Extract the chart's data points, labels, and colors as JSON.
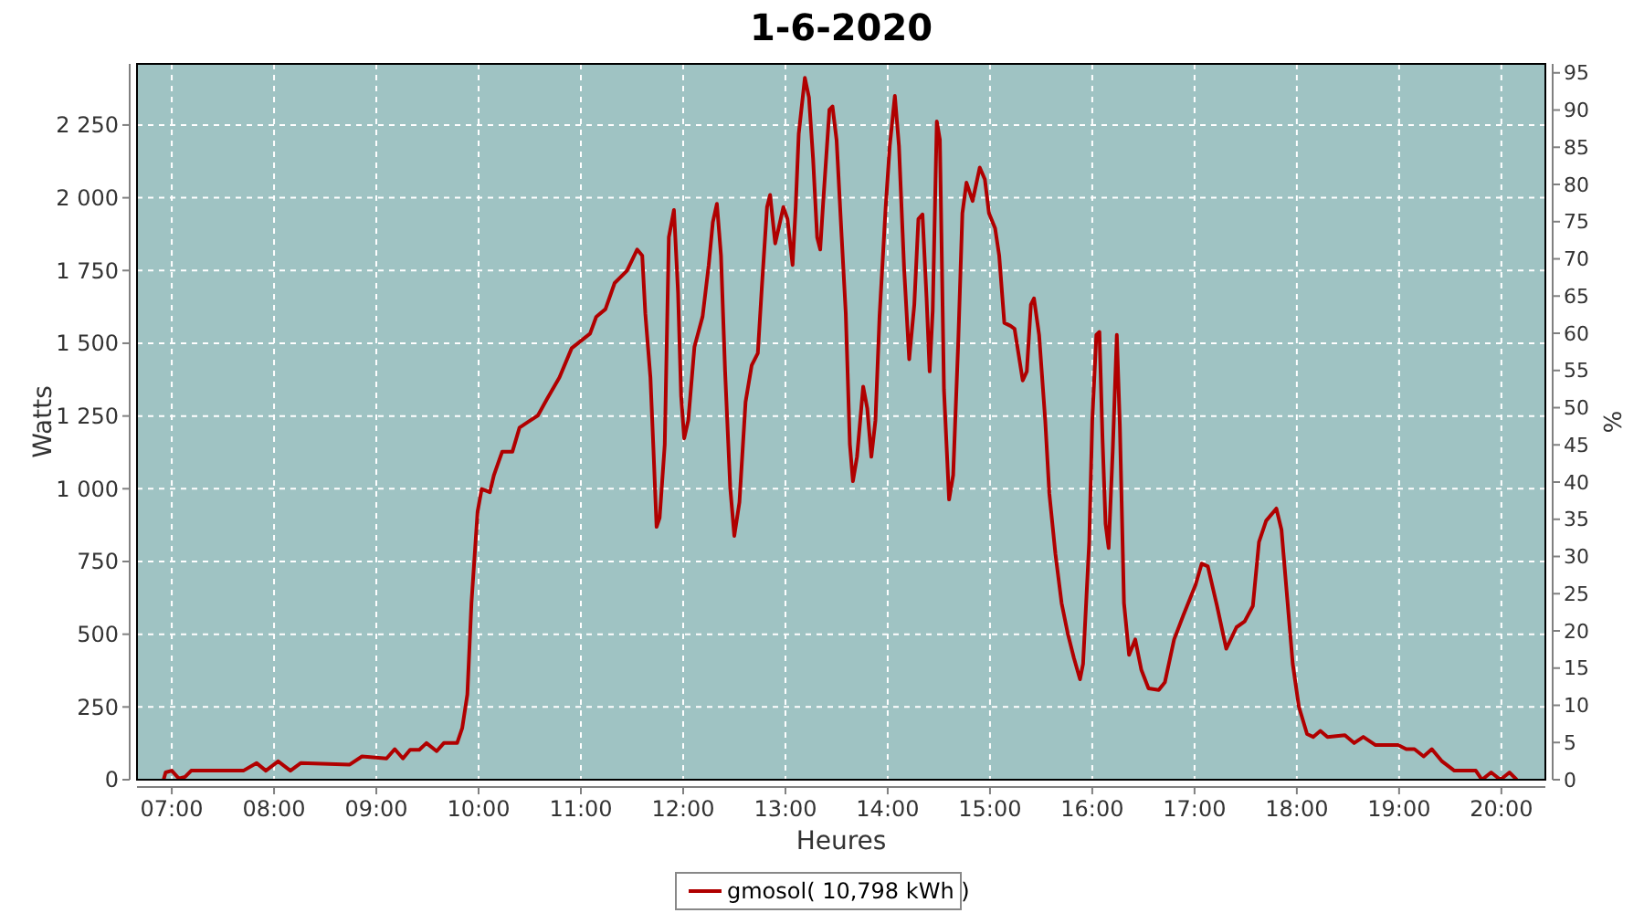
{
  "chart_data": {
    "type": "line",
    "title": "1-6-2020",
    "xlabel": "Heures",
    "ylabel": "Watts",
    "y2label": "%",
    "xlim": [
      6.66,
      20.43
    ],
    "ylim": [
      0,
      2460
    ],
    "y2lim": [
      0,
      96.2
    ],
    "xticks": [
      {
        "value": 7,
        "label": "07:00"
      },
      {
        "value": 8,
        "label": "08:00"
      },
      {
        "value": 9,
        "label": "09:00"
      },
      {
        "value": 10,
        "label": "10:00"
      },
      {
        "value": 11,
        "label": "11:00"
      },
      {
        "value": 12,
        "label": "12:00"
      },
      {
        "value": 13,
        "label": "13:00"
      },
      {
        "value": 14,
        "label": "14:00"
      },
      {
        "value": 15,
        "label": "15:00"
      },
      {
        "value": 16,
        "label": "16:00"
      },
      {
        "value": 17,
        "label": "17:00"
      },
      {
        "value": 18,
        "label": "18:00"
      },
      {
        "value": 19,
        "label": "19:00"
      },
      {
        "value": 20,
        "label": "20:00"
      }
    ],
    "yticks": [
      0,
      250,
      500,
      750,
      {
        "value": 1000,
        "label": "1 000"
      },
      {
        "value": 1250,
        "label": "1 250"
      },
      {
        "value": 1500,
        "label": "1 500"
      },
      {
        "value": 1750,
        "label": "1 750"
      },
      {
        "value": 2000,
        "label": "2 000"
      },
      {
        "value": 2250,
        "label": "2 250"
      }
    ],
    "y2ticks": [
      0,
      5,
      10,
      15,
      20,
      25,
      30,
      35,
      40,
      45,
      50,
      55,
      60,
      65,
      70,
      75,
      80,
      85,
      90,
      95
    ],
    "grid": true,
    "legend": "bottom",
    "x": [
      6.92,
      6.94,
      7.0,
      7.07,
      7.13,
      7.19,
      7.7,
      7.83,
      7.92,
      8.04,
      8.16,
      8.26,
      8.74,
      8.86,
      9.1,
      9.18,
      9.26,
      9.33,
      9.42,
      9.49,
      9.59,
      9.66,
      9.79,
      9.84,
      9.89,
      9.93,
      9.99,
      10.03,
      10.11,
      10.15,
      10.23,
      10.33,
      10.4,
      10.49,
      10.58,
      10.67,
      10.79,
      10.91,
      11.0,
      11.09,
      11.15,
      11.24,
      11.33,
      11.45,
      11.55,
      11.6,
      11.63,
      11.68,
      11.71,
      11.74,
      11.77,
      11.82,
      11.86,
      11.91,
      11.95,
      11.98,
      12.01,
      12.05,
      12.11,
      12.19,
      12.25,
      12.29,
      12.33,
      12.37,
      12.41,
      12.46,
      12.5,
      12.55,
      12.61,
      12.67,
      12.73,
      12.77,
      12.82,
      12.85,
      12.9,
      12.98,
      13.02,
      13.07,
      13.1,
      13.13,
      13.19,
      13.23,
      13.27,
      13.31,
      13.34,
      13.37,
      13.43,
      13.46,
      13.5,
      13.55,
      13.59,
      13.63,
      13.66,
      13.7,
      13.76,
      13.8,
      13.84,
      13.88,
      13.92,
      13.98,
      14.02,
      14.07,
      14.11,
      14.16,
      14.21,
      14.26,
      14.3,
      14.34,
      14.38,
      14.41,
      14.44,
      14.48,
      14.51,
      14.55,
      14.6,
      14.64,
      14.69,
      14.73,
      14.77,
      14.83,
      14.9,
      14.95,
      14.99,
      15.05,
      15.09,
      15.14,
      15.2,
      15.24,
      15.32,
      15.36,
      15.4,
      15.43,
      15.48,
      15.54,
      15.58,
      15.64,
      15.7,
      15.76,
      15.82,
      15.88,
      15.91,
      15.94,
      15.97,
      16.0,
      16.04,
      16.07,
      16.1,
      16.13,
      16.16,
      16.2,
      16.24,
      16.27,
      16.31,
      16.36,
      16.42,
      16.48,
      16.55,
      16.65,
      16.71,
      16.8,
      16.89,
      17.01,
      17.07,
      17.13,
      17.22,
      17.31,
      17.41,
      17.49,
      17.57,
      17.63,
      17.7,
      17.8,
      17.85,
      17.9,
      17.96,
      18.02,
      18.1,
      18.16,
      18.23,
      18.3,
      18.47,
      18.56,
      18.65,
      18.77,
      18.99,
      19.07,
      19.15,
      19.24,
      19.32,
      19.42,
      19.54,
      19.75,
      19.81,
      19.9,
      19.99,
      20.08,
      20.15
    ],
    "series": [
      {
        "name": "gmosol( 10,798 kWh )",
        "color": "#b00000",
        "values": [
          0,
          25,
          31,
          4,
          10,
          31,
          31,
          57,
          31,
          63,
          31,
          57,
          52,
          80,
          73,
          105,
          73,
          103,
          103,
          126,
          98,
          126,
          126,
          178,
          293,
          607,
          921,
          999,
          988,
          1047,
          1127,
          1127,
          1210,
          1231,
          1252,
          1309,
          1382,
          1483,
          1508,
          1533,
          1591,
          1617,
          1707,
          1749,
          1822,
          1801,
          1602,
          1382,
          1131,
          869,
          900,
          1152,
          1864,
          1958,
          1675,
          1319,
          1173,
          1235,
          1487,
          1592,
          1769,
          1916,
          1979,
          1801,
          1403,
          1005,
          838,
          953,
          1298,
          1424,
          1466,
          1696,
          1968,
          2010,
          1843,
          1968,
          1927,
          1769,
          1968,
          2220,
          2412,
          2345,
          2136,
          1864,
          1822,
          1989,
          2303,
          2314,
          2199,
          1864,
          1602,
          1152,
          1026,
          1110,
          1351,
          1277,
          1110,
          1235,
          1592,
          1968,
          2178,
          2350,
          2178,
          1759,
          1445,
          1633,
          1927,
          1943,
          1654,
          1403,
          1612,
          2262,
          2199,
          1340,
          963,
          1047,
          1508,
          1947,
          2052,
          1989,
          2104,
          2063,
          1947,
          1895,
          1801,
          1570,
          1560,
          1550,
          1372,
          1403,
          1633,
          1654,
          1529,
          1235,
          984,
          775,
          607,
          503,
          419,
          345,
          398,
          607,
          817,
          1235,
          1529,
          1539,
          1173,
          879,
          796,
          1131,
          1529,
          1214,
          607,
          429,
          482,
          377,
          314,
          308,
          335,
          482,
          565,
          670,
          743,
          733,
          597,
          450,
          524,
          544,
          597,
          817,
          890,
          932,
          859,
          649,
          398,
          251,
          157,
          147,
          168,
          147,
          153,
          126,
          147,
          119,
          119,
          105,
          105,
          80,
          105,
          63,
          31,
          31,
          0,
          25,
          0,
          25,
          0
        ]
      }
    ]
  }
}
